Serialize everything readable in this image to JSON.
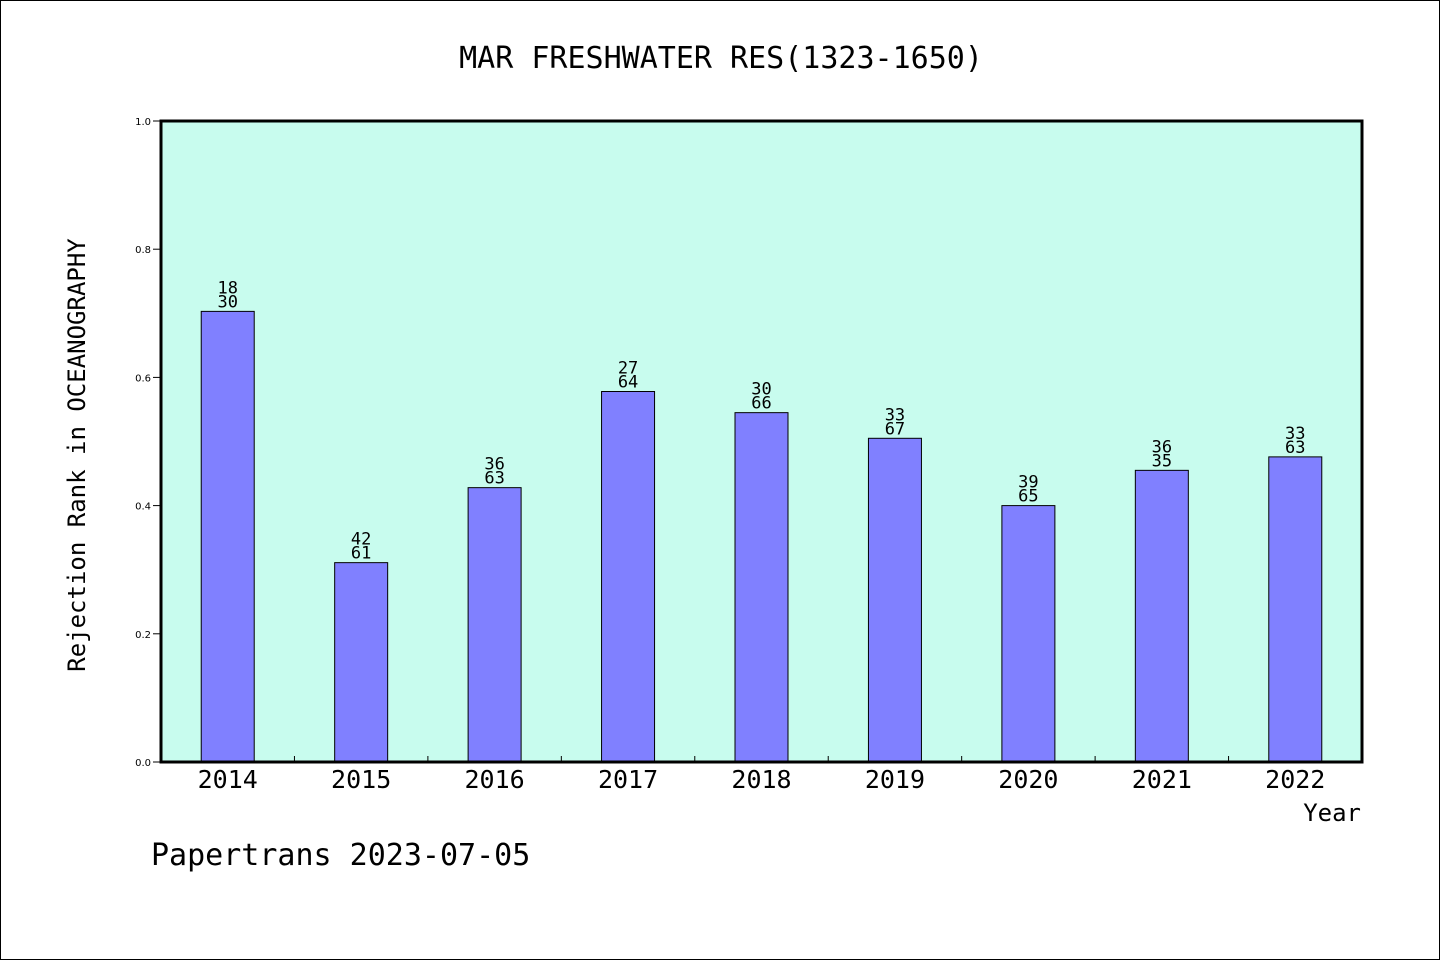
{
  "chart_data": {
    "type": "bar",
    "title": "MAR FRESHWATER RES(1323-1650)",
    "xlabel": "Year",
    "ylabel": "Rejection Rank in OCEANOGRAPHY",
    "ylim": [
      0.0,
      1.0
    ],
    "yticks": [
      "0.0",
      "0.2",
      "0.4",
      "0.6",
      "0.8",
      "1.0"
    ],
    "grid": false,
    "categories": [
      "2014",
      "2015",
      "2016",
      "2017",
      "2018",
      "2019",
      "2020",
      "2021",
      "2022"
    ],
    "values": [
      0.703,
      0.311,
      0.428,
      0.578,
      0.545,
      0.505,
      0.4,
      0.455,
      0.476
    ],
    "bar_labels": [
      [
        "18",
        "30"
      ],
      [
        "42",
        "61"
      ],
      [
        "36",
        "63"
      ],
      [
        "27",
        "64"
      ],
      [
        "30",
        "66"
      ],
      [
        "33",
        "67"
      ],
      [
        "39",
        "65"
      ],
      [
        "36",
        "35"
      ],
      [
        "33",
        "63"
      ]
    ],
    "colors": {
      "plot_background": "#c8fcee",
      "bar_fill": "#8080ff",
      "bar_stroke": "#000000"
    }
  },
  "footer": {
    "text": "Papertrans 2023-07-05"
  }
}
